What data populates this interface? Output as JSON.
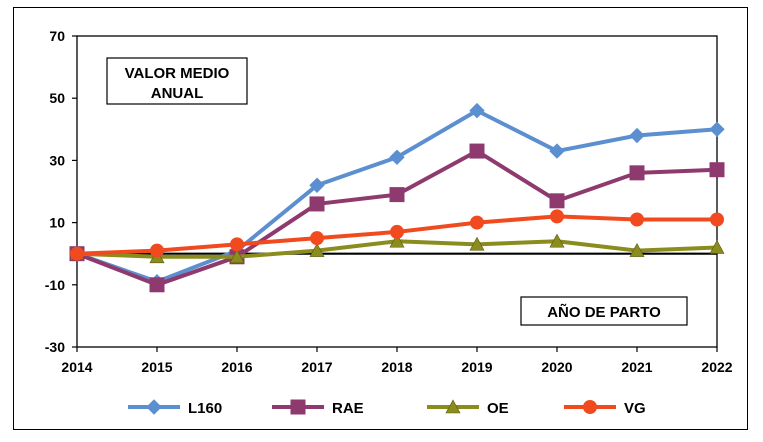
{
  "chart_data": {
    "type": "line",
    "title": "",
    "xlabel": "",
    "ylabel": "",
    "x": [
      "2014",
      "2015",
      "2016",
      "2017",
      "2018",
      "2019",
      "2020",
      "2021",
      "2022"
    ],
    "ylim": [
      -30,
      70
    ],
    "yticks": [
      "70",
      "50",
      "30",
      "10",
      "-10",
      "-30"
    ],
    "grid": false,
    "legend_position": "bottom",
    "annotations": {
      "top_left": [
        "VALOR MEDIO",
        "ANUAL"
      ],
      "bottom_right": "AÑO DE PARTO"
    },
    "series": [
      {
        "name": "L160",
        "color": "#5b8fd0",
        "marker": "diamond",
        "values": [
          0,
          -9,
          1,
          22,
          31,
          46,
          33,
          38,
          40
        ]
      },
      {
        "name": "RAE",
        "color": "#8e3a6e",
        "marker": "square",
        "values": [
          0,
          -10,
          -1,
          16,
          19,
          33,
          17,
          26,
          27
        ]
      },
      {
        "name": "OE",
        "color": "#8b8c1e",
        "marker": "triangle",
        "values": [
          0,
          -1,
          -1,
          1,
          4,
          3,
          4,
          1,
          2
        ]
      },
      {
        "name": "VG",
        "color": "#f04a1e",
        "marker": "circle",
        "values": [
          0,
          1,
          3,
          5,
          7,
          10,
          12,
          11,
          11
        ]
      }
    ]
  }
}
